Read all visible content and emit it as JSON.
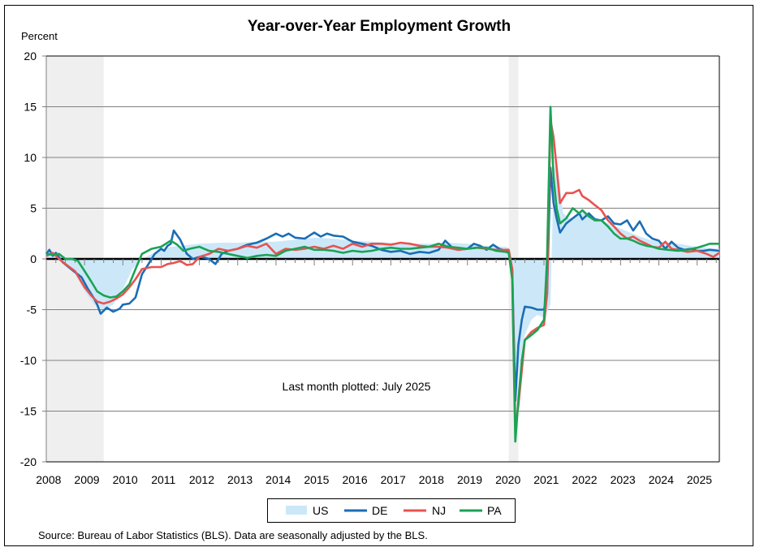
{
  "chart_data": {
    "type": "line",
    "title": "Year-over-Year Employment Growth",
    "ylabel": "Percent",
    "xlabel": "",
    "ylim": [
      -20,
      20
    ],
    "yticks": [
      20,
      15,
      10,
      5,
      0,
      -5,
      -10,
      -15,
      -20
    ],
    "ytick_labels": [
      "20",
      "15",
      "10",
      "5",
      "0",
      "-5",
      "-10",
      "-15",
      "-20"
    ],
    "xlim": [
      2008.0,
      2025.58
    ],
    "xticks": [
      2008,
      2009,
      2010,
      2011,
      2012,
      2013,
      2014,
      2015,
      2016,
      2017,
      2018,
      2019,
      2020,
      2021,
      2022,
      2023,
      2024,
      2025
    ],
    "xtick_labels": [
      "2008",
      "2009",
      "2010",
      "2011",
      "2012",
      "2013",
      "2014",
      "2015",
      "2016",
      "2017",
      "2018",
      "2019",
      "2020",
      "2021",
      "2022",
      "2023",
      "2024",
      "2025"
    ],
    "grid": true,
    "recessions": [
      {
        "start": 2008.0,
        "end": 2009.5
      },
      {
        "start": 2020.08,
        "end": 2020.33
      }
    ],
    "annotation": "Last month plotted: July 2025",
    "legend_position": "bottom",
    "series": [
      {
        "name": "US",
        "style": "area",
        "color": "#cce8f8",
        "x": [
          2008.0,
          2008.25,
          2008.5,
          2008.75,
          2009.0,
          2009.25,
          2009.5,
          2009.75,
          2010.0,
          2010.25,
          2010.5,
          2010.75,
          2011.0,
          2011.25,
          2011.5,
          2011.75,
          2012.0,
          2012.5,
          2013.0,
          2013.5,
          2014.0,
          2014.5,
          2015.0,
          2015.5,
          2016.0,
          2016.5,
          2017.0,
          2017.5,
          2018.0,
          2018.5,
          2019.0,
          2019.5,
          2020.0,
          2020.08,
          2020.17,
          2020.25,
          2020.33,
          2020.42,
          2020.5,
          2020.67,
          2020.83,
          2021.0,
          2021.17,
          2021.25,
          2021.33,
          2021.5,
          2021.67,
          2021.83,
          2022.0,
          2022.25,
          2022.5,
          2022.75,
          2023.0,
          2023.25,
          2023.5,
          2023.75,
          2024.0,
          2024.5,
          2025.0,
          2025.25,
          2025.58
        ],
        "values": [
          0.8,
          0.3,
          -0.4,
          -1.5,
          -3.2,
          -4.5,
          -5.0,
          -4.5,
          -3.0,
          -1.0,
          0.0,
          0.5,
          0.9,
          1.2,
          1.3,
          1.4,
          1.5,
          1.6,
          1.6,
          1.7,
          1.7,
          1.9,
          2.1,
          2.0,
          1.8,
          1.7,
          1.6,
          1.5,
          1.5,
          1.6,
          1.5,
          1.3,
          1.2,
          1.1,
          -0.5,
          -13.0,
          -11.5,
          -9.0,
          -7.5,
          -6.0,
          -5.5,
          -5.8,
          -4.5,
          8.0,
          10.0,
          4.5,
          4.0,
          4.2,
          4.6,
          4.3,
          3.8,
          3.4,
          3.0,
          2.6,
          2.2,
          1.9,
          1.7,
          1.5,
          1.2,
          1.1,
          1.0
        ]
      },
      {
        "name": "DE",
        "style": "line",
        "color": "#1a6db5",
        "x": [
          2008.0,
          2008.08,
          2008.17,
          2008.25,
          2008.42,
          2008.58,
          2008.75,
          2008.92,
          2009.08,
          2009.25,
          2009.33,
          2009.42,
          2009.58,
          2009.75,
          2009.92,
          2010.0,
          2010.17,
          2010.33,
          2010.5,
          2010.67,
          2010.83,
          2011.0,
          2011.08,
          2011.17,
          2011.25,
          2011.33,
          2011.5,
          2011.67,
          2011.83,
          2012.0,
          2012.17,
          2012.25,
          2012.42,
          2012.58,
          2012.75,
          2013.0,
          2013.25,
          2013.5,
          2013.75,
          2014.0,
          2014.17,
          2014.33,
          2014.5,
          2014.75,
          2015.0,
          2015.17,
          2015.33,
          2015.5,
          2015.75,
          2016.0,
          2016.25,
          2016.5,
          2016.75,
          2017.0,
          2017.25,
          2017.5,
          2017.75,
          2018.0,
          2018.25,
          2018.42,
          2018.58,
          2018.75,
          2019.0,
          2019.17,
          2019.33,
          2019.5,
          2019.67,
          2019.83,
          2020.0,
          2020.08,
          2020.17,
          2020.25,
          2020.33,
          2020.42,
          2020.5,
          2020.67,
          2020.83,
          2021.0,
          2021.08,
          2021.17,
          2021.25,
          2021.33,
          2021.42,
          2021.58,
          2021.75,
          2021.92,
          2022.0,
          2022.17,
          2022.33,
          2022.5,
          2022.67,
          2022.83,
          2023.0,
          2023.17,
          2023.33,
          2023.5,
          2023.67,
          2023.83,
          2024.0,
          2024.17,
          2024.33,
          2024.5,
          2024.67,
          2024.83,
          2025.0,
          2025.17,
          2025.33,
          2025.58
        ],
        "values": [
          0.5,
          0.9,
          0.3,
          0.6,
          -0.3,
          -0.8,
          -1.3,
          -1.8,
          -2.9,
          -3.9,
          -4.5,
          -5.4,
          -4.8,
          -5.2,
          -4.9,
          -4.5,
          -4.4,
          -3.8,
          -1.5,
          -0.5,
          0.5,
          1.0,
          0.8,
          1.3,
          1.5,
          2.8,
          1.9,
          0.5,
          0.0,
          0.2,
          0.1,
          0.0,
          -0.5,
          0.5,
          0.8,
          1.0,
          1.4,
          1.6,
          2.0,
          2.5,
          2.2,
          2.5,
          2.1,
          2.0,
          2.6,
          2.2,
          2.5,
          2.3,
          2.2,
          1.7,
          1.5,
          1.3,
          0.9,
          0.7,
          0.8,
          0.5,
          0.7,
          0.6,
          0.9,
          1.8,
          1.2,
          0.9,
          1.0,
          1.5,
          1.3,
          0.9,
          1.4,
          1.0,
          0.8,
          0.7,
          -1.0,
          -14.0,
          -8.5,
          -6.0,
          -4.7,
          -4.8,
          -5.0,
          -5.0,
          -3.5,
          9.0,
          5.5,
          4.0,
          2.6,
          3.5,
          4.0,
          4.5,
          3.9,
          4.5,
          3.9,
          3.8,
          4.2,
          3.5,
          3.4,
          3.8,
          2.8,
          3.7,
          2.5,
          2.0,
          1.8,
          1.0,
          1.7,
          1.1,
          0.9,
          1.0,
          0.8,
          0.8,
          0.9,
          0.8
        ]
      },
      {
        "name": "NJ",
        "style": "line",
        "color": "#e8534f",
        "x": [
          2008.0,
          2008.17,
          2008.33,
          2008.5,
          2008.75,
          2009.0,
          2009.17,
          2009.33,
          2009.5,
          2009.67,
          2009.83,
          2010.0,
          2010.17,
          2010.33,
          2010.5,
          2010.75,
          2011.0,
          2011.17,
          2011.33,
          2011.5,
          2011.67,
          2011.83,
          2012.0,
          2012.25,
          2012.5,
          2012.75,
          2013.0,
          2013.25,
          2013.5,
          2013.75,
          2014.0,
          2014.25,
          2014.5,
          2014.75,
          2015.0,
          2015.25,
          2015.5,
          2015.75,
          2016.0,
          2016.25,
          2016.5,
          2016.75,
          2017.0,
          2017.25,
          2017.5,
          2017.75,
          2018.0,
          2018.25,
          2018.5,
          2018.75,
          2019.0,
          2019.25,
          2019.5,
          2019.75,
          2020.0,
          2020.08,
          2020.17,
          2020.25,
          2020.33,
          2020.42,
          2020.5,
          2020.67,
          2020.83,
          2021.0,
          2021.08,
          2021.17,
          2021.25,
          2021.33,
          2021.42,
          2021.58,
          2021.75,
          2021.92,
          2022.0,
          2022.17,
          2022.33,
          2022.5,
          2022.67,
          2022.83,
          2023.0,
          2023.17,
          2023.33,
          2023.5,
          2023.67,
          2023.83,
          2024.0,
          2024.17,
          2024.33,
          2024.5,
          2024.75,
          2025.0,
          2025.25,
          2025.42,
          2025.58
        ],
        "values": [
          0.3,
          0.6,
          0.0,
          -0.5,
          -1.2,
          -2.8,
          -3.6,
          -4.2,
          -4.4,
          -4.2,
          -3.9,
          -3.5,
          -2.8,
          -2.0,
          -1.0,
          -0.8,
          -0.8,
          -0.5,
          -0.4,
          -0.2,
          -0.6,
          -0.5,
          0.2,
          0.5,
          1.0,
          0.8,
          1.0,
          1.3,
          1.1,
          1.5,
          0.5,
          1.0,
          0.9,
          1.0,
          1.2,
          1.0,
          1.3,
          1.0,
          1.5,
          1.2,
          1.5,
          1.5,
          1.4,
          1.6,
          1.5,
          1.3,
          1.2,
          1.2,
          1.1,
          0.9,
          1.0,
          1.1,
          1.0,
          0.9,
          0.9,
          0.9,
          -1.0,
          -16.5,
          -14.5,
          -11.0,
          -8.0,
          -7.2,
          -6.8,
          -6.5,
          -3.5,
          13.7,
          12.0,
          9.0,
          5.5,
          6.5,
          6.5,
          6.8,
          6.2,
          5.8,
          5.3,
          4.8,
          3.8,
          3.2,
          2.5,
          2.0,
          2.2,
          1.8,
          1.5,
          1.2,
          1.1,
          1.7,
          1.0,
          0.9,
          0.7,
          0.8,
          0.5,
          0.2,
          0.6
        ]
      },
      {
        "name": "PA",
        "style": "line",
        "color": "#1aa355",
        "x": [
          2008.0,
          2008.17,
          2008.33,
          2008.5,
          2008.67,
          2008.83,
          2009.0,
          2009.17,
          2009.33,
          2009.5,
          2009.67,
          2009.83,
          2010.0,
          2010.17,
          2010.33,
          2010.5,
          2010.75,
          2011.0,
          2011.25,
          2011.42,
          2011.58,
          2011.75,
          2012.0,
          2012.25,
          2012.5,
          2012.75,
          2013.0,
          2013.25,
          2013.5,
          2013.75,
          2014.0,
          2014.25,
          2014.5,
          2014.75,
          2015.0,
          2015.25,
          2015.5,
          2015.75,
          2016.0,
          2016.25,
          2016.5,
          2016.75,
          2017.0,
          2017.25,
          2017.5,
          2017.75,
          2018.0,
          2018.25,
          2018.5,
          2018.75,
          2019.0,
          2019.25,
          2019.5,
          2019.75,
          2020.0,
          2020.08,
          2020.17,
          2020.25,
          2020.33,
          2020.42,
          2020.5,
          2020.67,
          2020.83,
          2021.0,
          2021.08,
          2021.17,
          2021.25,
          2021.33,
          2021.42,
          2021.58,
          2021.75,
          2021.92,
          2022.0,
          2022.17,
          2022.33,
          2022.5,
          2022.67,
          2022.83,
          2023.0,
          2023.17,
          2023.33,
          2023.5,
          2023.67,
          2023.83,
          2024.0,
          2024.25,
          2024.5,
          2024.75,
          2025.0,
          2025.17,
          2025.33,
          2025.58
        ],
        "values": [
          0.5,
          0.4,
          0.5,
          0.0,
          0.0,
          -0.2,
          -1.2,
          -2.2,
          -3.2,
          -3.6,
          -3.8,
          -3.7,
          -3.2,
          -2.5,
          -1.0,
          0.5,
          1.0,
          1.2,
          1.8,
          1.4,
          0.8,
          1.0,
          1.2,
          0.8,
          0.7,
          0.5,
          0.3,
          0.1,
          0.3,
          0.4,
          0.3,
          0.8,
          1.0,
          1.2,
          0.9,
          0.9,
          0.8,
          0.6,
          0.8,
          0.7,
          0.8,
          1.0,
          1.1,
          1.0,
          1.0,
          1.1,
          1.2,
          1.5,
          1.2,
          1.1,
          1.0,
          1.1,
          1.1,
          0.8,
          0.7,
          0.6,
          -2.0,
          -18.0,
          -14.0,
          -10.0,
          -8.0,
          -7.5,
          -7.0,
          -6.0,
          0.0,
          15.0,
          8.0,
          5.0,
          3.5,
          4.0,
          5.0,
          4.5,
          4.8,
          4.2,
          3.8,
          3.8,
          3.2,
          2.5,
          2.0,
          2.0,
          1.8,
          1.5,
          1.3,
          1.2,
          1.0,
          0.9,
          0.8,
          0.9,
          1.1,
          1.3,
          1.5,
          1.5
        ]
      }
    ],
    "legend": [
      {
        "label": "US",
        "kind": "area"
      },
      {
        "label": "DE",
        "kind": "line"
      },
      {
        "label": "NJ",
        "kind": "line"
      },
      {
        "label": "PA",
        "kind": "line"
      }
    ],
    "source": "Source: Bureau of Labor Statistics (BLS). Data are seasonally adjusted by the BLS."
  }
}
